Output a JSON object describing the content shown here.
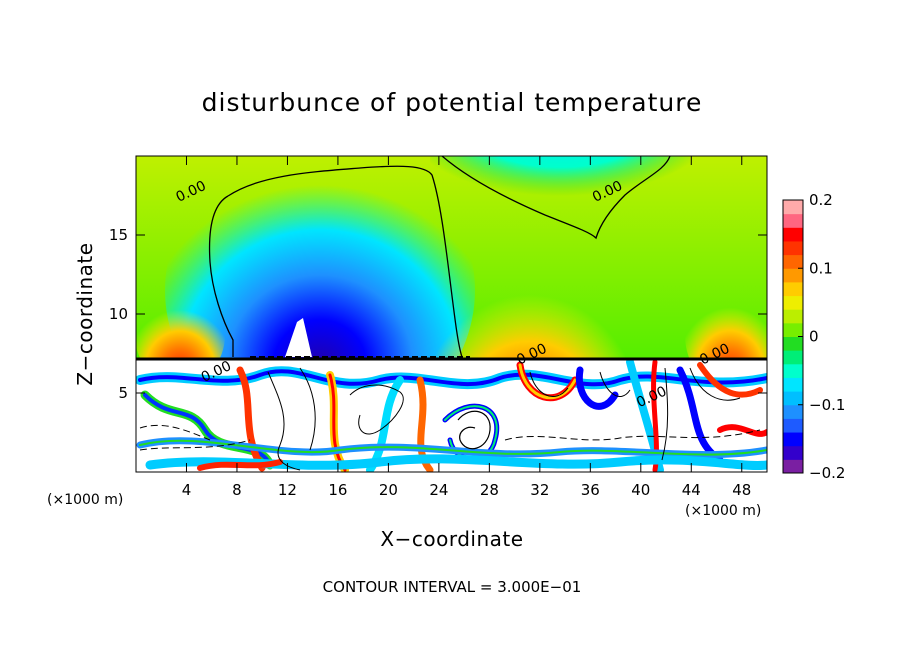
{
  "chart_data": {
    "type": "heatmap",
    "title": "disturbunce of potential temperature",
    "xlabel": "X−coordinate",
    "ylabel": "Z−coordinate",
    "x_unit_left": "(×1000 m)",
    "x_unit_right": "(×1000 m)",
    "xlim": [
      0,
      50
    ],
    "ylim": [
      0,
      20
    ],
    "x_ticks": [
      4,
      8,
      12,
      16,
      20,
      24,
      28,
      32,
      36,
      40,
      44,
      48
    ],
    "x_tick_labels": [
      "4",
      "8",
      "12",
      "16",
      "20",
      "24",
      "28",
      "32",
      "36",
      "40",
      "44",
      "48"
    ],
    "y_ticks": [
      5,
      10,
      15
    ],
    "y_tick_labels": [
      "5",
      "10",
      "15"
    ],
    "colorbar": {
      "min": -0.2,
      "max": 0.2,
      "tick_labels": [
        "0.2",
        "0.1",
        "0",
        "−0.1",
        "−0.2"
      ],
      "tick_values": [
        0.2,
        0.1,
        0,
        -0.1,
        -0.2
      ],
      "colors": [
        "#7a1fa2",
        "#3300cc",
        "#0000ff",
        "#1e5bff",
        "#1e90ff",
        "#00bfff",
        "#00e5ff",
        "#00ffcc",
        "#00ee77",
        "#22dd22",
        "#77ee00",
        "#bbee00",
        "#eeee00",
        "#ffcc00",
        "#ff9900",
        "#ff6600",
        "#ff3300",
        "#ff0000",
        "#ff6680",
        "#ffaaaa"
      ]
    },
    "contour_labels": [
      {
        "text": "0.00",
        "x": 4.5,
        "z": 17.5
      },
      {
        "text": "0.00",
        "x": 37.5,
        "z": 17.5
      },
      {
        "text": "0.00",
        "x": 31.5,
        "z": 7.2
      },
      {
        "text": "0.00",
        "x": 46,
        "z": 7.2
      },
      {
        "text": "0.00",
        "x": 6.5,
        "z": 6.1
      },
      {
        "text": "0.00",
        "x": 41,
        "z": 4.5
      }
    ],
    "footer": "CONTOUR INTERVAL = 3.000E−01"
  }
}
